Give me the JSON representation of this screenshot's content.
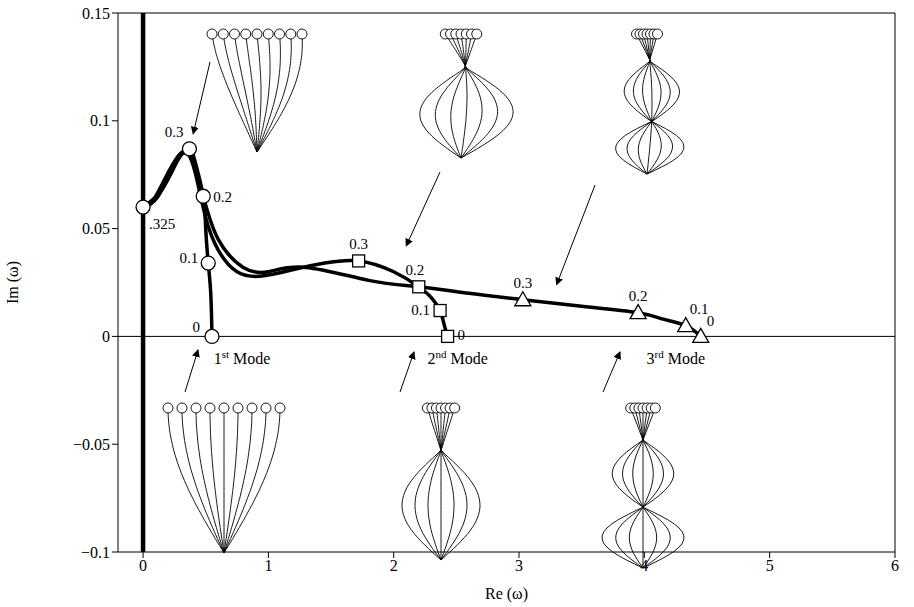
{
  "chart_data": {
    "type": "line",
    "x_label": "Re (ω)",
    "y_label": "Im (ω)",
    "xlim": [
      -0.2,
      6
    ],
    "ylim": [
      -0.1,
      0.15
    ],
    "xticks": [
      0,
      1,
      2,
      3,
      4,
      5,
      6
    ],
    "yticks": [
      {
        "value": -0.1,
        "label": "−0.1"
      },
      {
        "value": -0.05,
        "label": "−0.05"
      },
      0,
      0.05,
      0.1,
      0.15
    ],
    "series": [
      {
        "name": "1st Mode",
        "color": "#000000",
        "marker": "circle",
        "line_style": "solid",
        "x": [
          0.55,
          0.54,
          0.52,
          0.5,
          0.48,
          0.42,
          0.37,
          0.28,
          0.15,
          0
        ],
        "values": [
          0,
          0.02,
          0.034,
          0.05,
          0.065,
          0.08,
          0.087,
          0.082,
          0.068,
          0.06
        ],
        "points": [
          {
            "x": 0.55,
            "y": 0,
            "label": "0"
          },
          {
            "x": 0.52,
            "y": 0.034,
            "label": "0.1"
          },
          {
            "x": 0.48,
            "y": 0.065,
            "label": "0.2"
          },
          {
            "x": 0.37,
            "y": 0.087,
            "label": "0.3"
          },
          {
            "x": 0,
            "y": 0.06,
            "label": ".325"
          }
        ]
      },
      {
        "name": "2nd Mode",
        "color": "#000000",
        "marker": "square",
        "line_style": "solid",
        "x": [
          2.43,
          2.4,
          2.37,
          2.3,
          2.2,
          2.0,
          1.72,
          1.45,
          1.2,
          0.95,
          0.75,
          0.6,
          0.5,
          0.42,
          0.35,
          0.25,
          0.12,
          0
        ],
        "values": [
          0,
          0.006,
          0.012,
          0.018,
          0.023,
          0.03,
          0.035,
          0.034,
          0.031,
          0.028,
          0.03,
          0.04,
          0.055,
          0.075,
          0.085,
          0.08,
          0.065,
          0.06
        ],
        "points": [
          {
            "x": 2.43,
            "y": 0,
            "label": "0"
          },
          {
            "x": 2.37,
            "y": 0.012,
            "label": "0.1"
          },
          {
            "x": 2.2,
            "y": 0.023,
            "label": "0.2"
          },
          {
            "x": 1.72,
            "y": 0.035,
            "label": "0.3"
          }
        ]
      },
      {
        "name": "3rd Mode",
        "color": "#000000",
        "marker": "triangle",
        "line_style": "solid",
        "x": [
          4.45,
          4.33,
          4.15,
          3.95,
          3.5,
          3.03,
          2.6,
          2.2,
          1.8,
          1.3,
          1.0,
          0.8,
          0.6,
          0.48,
          0.38,
          0.3,
          0.2,
          0.08,
          0
        ],
        "values": [
          0,
          0.005,
          0.008,
          0.011,
          0.014,
          0.017,
          0.02,
          0.023,
          0.026,
          0.032,
          0.03,
          0.032,
          0.045,
          0.065,
          0.083,
          0.085,
          0.076,
          0.063,
          0.06
        ],
        "points": [
          {
            "x": 4.45,
            "y": 0,
            "label": "0"
          },
          {
            "x": 4.33,
            "y": 0.005,
            "label": "0.1"
          },
          {
            "x": 3.95,
            "y": 0.011,
            "label": "0.2"
          },
          {
            "x": 3.03,
            "y": 0.017,
            "label": "0.3"
          }
        ]
      },
      {
        "color": "#000000",
        "line_style": "thick",
        "x": [
          0,
          0
        ],
        "values": [
          -0.1,
          0.15
        ]
      },
      {
        "color": "#000000",
        "line_style": "thin",
        "x": [
          -0.2,
          6
        ],
        "values": [
          0,
          0
        ]
      }
    ]
  }
}
